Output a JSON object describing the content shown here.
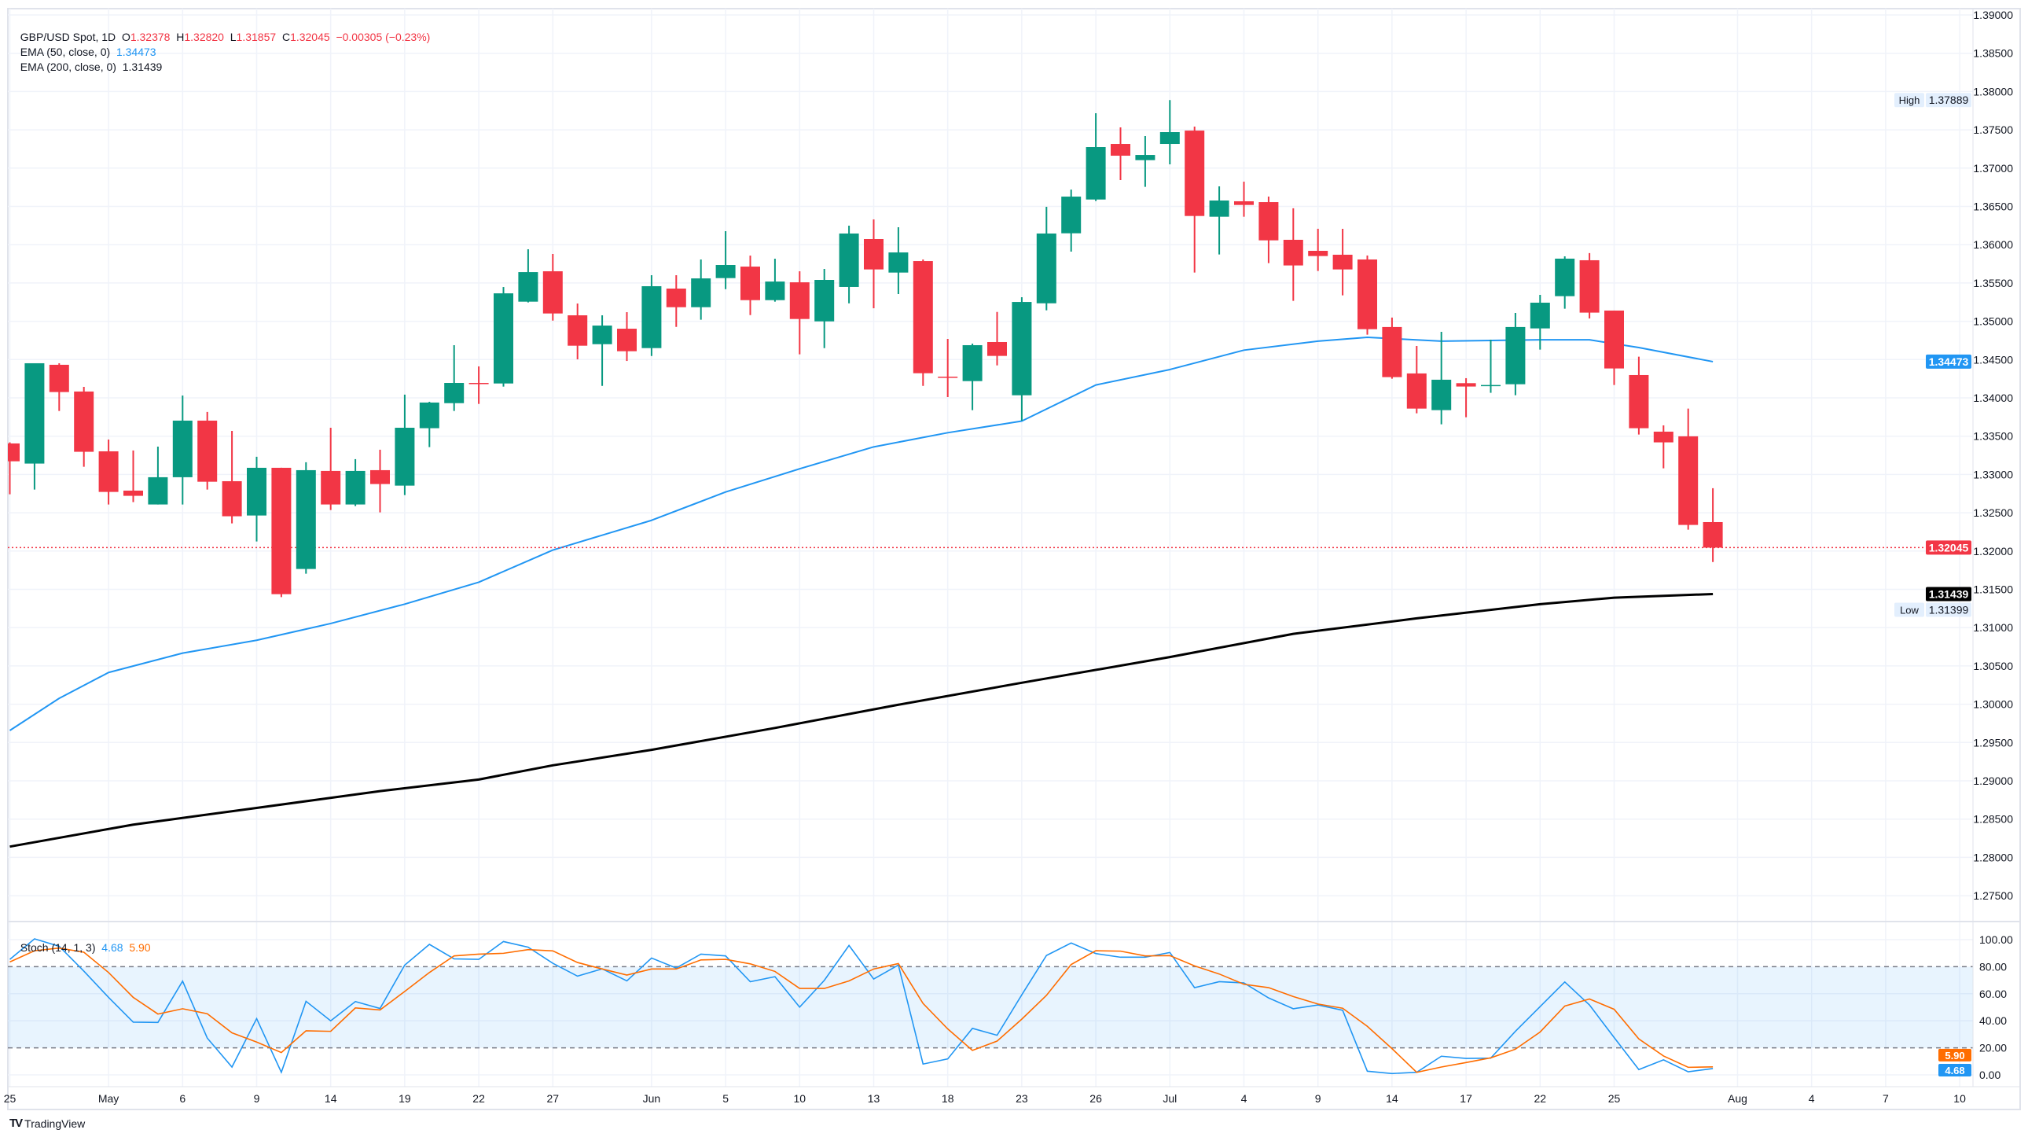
{
  "legend": {
    "symbol": "GBP/USD Spot, 1D",
    "o_label": "O",
    "o": "1.32378",
    "h_label": "H",
    "h": "1.32820",
    "l_label": "L",
    "l": "1.31857",
    "c_label": "C",
    "c": "1.32045",
    "change": "−0.00305 (−0.23%)",
    "ema50_label": "EMA (50, close, 0)",
    "ema50_value": "1.34473",
    "ema200_label": "EMA (200, close, 0)",
    "ema200_value": "1.31439",
    "stoch_label": "Stoch (14, 1, 3)",
    "stoch_k": "4.68",
    "stoch_d": "5.90"
  },
  "branding": {
    "logo_text": "TradingView"
  },
  "colors": {
    "up": "#089981",
    "down": "#f23645",
    "ema50": "#2196f3",
    "ema200": "#000000",
    "stoch_k": "#2196f3",
    "stoch_d": "#ff6d00",
    "last_price": "#f23645"
  },
  "chart_data": [
    {
      "type": "candlestick",
      "title": "GBP/USD Spot, 1D",
      "ylim": [
        1.27,
        1.39
      ],
      "y_ticks": [
        "1.39000",
        "1.38500",
        "1.38000",
        "1.37500",
        "1.37000",
        "1.36500",
        "1.36000",
        "1.35500",
        "1.35000",
        "1.34500",
        "1.34000",
        "1.33500",
        "1.33000",
        "1.32500",
        "1.32000",
        "1.31500",
        "1.31000",
        "1.30500",
        "1.30000",
        "1.29500",
        "1.29000",
        "1.28500",
        "1.28000",
        "1.27500"
      ],
      "x_ticks": [
        {
          "date": "Apr 25",
          "label": "25"
        },
        {
          "date": "May 1",
          "label": "May"
        },
        {
          "date": "May 6",
          "label": "6"
        },
        {
          "date": "May 9",
          "label": "9"
        },
        {
          "date": "May 14",
          "label": "14"
        },
        {
          "date": "May 19",
          "label": "19"
        },
        {
          "date": "May 22",
          "label": "22"
        },
        {
          "date": "May 27",
          "label": "27"
        },
        {
          "date": "Jun 2",
          "label": "Jun"
        },
        {
          "date": "Jun 5",
          "label": "5"
        },
        {
          "date": "Jun 10",
          "label": "10"
        },
        {
          "date": "Jun 13",
          "label": "13"
        },
        {
          "date": "Jun 18",
          "label": "18"
        },
        {
          "date": "Jun 23",
          "label": "23"
        },
        {
          "date": "Jun 26",
          "label": "26"
        },
        {
          "date": "Jul 1",
          "label": "Jul"
        },
        {
          "date": "Jul 4",
          "label": "4"
        },
        {
          "date": "Jul 9",
          "label": "9"
        },
        {
          "date": "Jul 14",
          "label": "14"
        },
        {
          "date": "Jul 17",
          "label": "17"
        },
        {
          "date": "Jul 22",
          "label": "22"
        },
        {
          "date": "Jul 25",
          "label": "25"
        },
        {
          "date": "Aug 1",
          "label": "Aug"
        },
        {
          "date": "Aug 4",
          "label": "4"
        },
        {
          "date": "Aug 7",
          "label": "7"
        },
        {
          "date": "Aug 10",
          "label": "10"
        }
      ],
      "grid": true,
      "candles_columns": [
        "date",
        "open",
        "high",
        "low",
        "close"
      ],
      "candles": [
        [
          "Apr 25",
          1.33405,
          1.33419,
          1.32741,
          1.33172
        ],
        [
          "Apr 28",
          1.33142,
          1.34452,
          1.32803,
          1.34452
        ],
        [
          "Apr 29",
          1.34432,
          1.34452,
          1.33829,
          1.34076
        ],
        [
          "Apr 30",
          1.34083,
          1.34144,
          1.33101,
          1.33296
        ],
        [
          "May 1",
          1.33302,
          1.33456,
          1.32608,
          1.32772
        ],
        [
          "May 2",
          1.32789,
          1.33313,
          1.32639,
          1.32721
        ],
        [
          "May 5",
          1.32608,
          1.33364,
          1.32608,
          1.32964
        ],
        [
          "May 6",
          1.32964,
          1.34031,
          1.32608,
          1.33703
        ],
        [
          "May 7",
          1.33703,
          1.33816,
          1.32803,
          1.32905
        ],
        [
          "May 8",
          1.32912,
          1.33569,
          1.32361,
          1.32454
        ],
        [
          "May 9",
          1.32464,
          1.33231,
          1.32125,
          1.33087
        ],
        [
          "May 12",
          1.33087,
          1.33087,
          1.31399,
          1.31437
        ],
        [
          "May 13",
          1.31766,
          1.33159,
          1.31704,
          1.33056
        ],
        [
          "May 14",
          1.33046,
          1.3361,
          1.32536,
          1.32608
        ],
        [
          "May 15",
          1.32608,
          1.332,
          1.32587,
          1.33046
        ],
        [
          "May 16",
          1.33056,
          1.33323,
          1.32505,
          1.32875
        ],
        [
          "May 19",
          1.32854,
          1.34042,
          1.32731,
          1.3361
        ],
        [
          "May 20",
          1.33604,
          1.33949,
          1.33357,
          1.33939
        ],
        [
          "May 21",
          1.33931,
          1.34688,
          1.33829,
          1.34195
        ],
        [
          "May 22",
          1.34195,
          1.34411,
          1.33921,
          1.34188
        ],
        [
          "May 23",
          1.34188,
          1.35447,
          1.34147,
          1.35365
        ],
        [
          "May 26",
          1.35256,
          1.3594,
          1.35246,
          1.35642
        ],
        [
          "May 27",
          1.35653,
          1.35879,
          1.35009,
          1.35102
        ],
        [
          "May 28",
          1.35078,
          1.35232,
          1.34503,
          1.34681
        ],
        [
          "May 29",
          1.34701,
          1.35078,
          1.34157,
          1.34944
        ],
        [
          "May 30",
          1.34903,
          1.35119,
          1.34482,
          1.34609
        ],
        [
          "Jun 2",
          1.3465,
          1.35602,
          1.34547,
          1.35458
        ],
        [
          "Jun 3",
          1.35427,
          1.35602,
          1.34927,
          1.35184
        ],
        [
          "Jun 4",
          1.35184,
          1.35807,
          1.3502,
          1.3556
        ],
        [
          "Jun 5",
          1.35564,
          1.36176,
          1.3542,
          1.35735
        ],
        [
          "Jun 6",
          1.35714,
          1.35858,
          1.35081,
          1.35276
        ],
        [
          "Jun 9",
          1.35276,
          1.35817,
          1.35256,
          1.35519
        ],
        [
          "Jun 10",
          1.35509,
          1.35653,
          1.34568,
          1.3503
        ],
        [
          "Jun 11",
          1.34999,
          1.35684,
          1.3465,
          1.3554
        ],
        [
          "Jun 12",
          1.35448,
          1.36248,
          1.35235,
          1.36146
        ],
        [
          "Jun 13",
          1.36074,
          1.3633,
          1.3517,
          1.35677
        ],
        [
          "Jun 16",
          1.35636,
          1.36228,
          1.35355,
          1.35899
        ],
        [
          "Jun 17",
          1.35786,
          1.35807,
          1.34157,
          1.34322
        ],
        [
          "Jun 18",
          1.34277,
          1.3477,
          1.3401,
          1.34274
        ],
        [
          "Jun 19",
          1.34219,
          1.34708,
          1.33839,
          1.34688
        ],
        [
          "Jun 20",
          1.34729,
          1.35122,
          1.34424,
          1.34548
        ],
        [
          "Jun 23",
          1.34034,
          1.35314,
          1.33702,
          1.35252
        ],
        [
          "Jun 24",
          1.35235,
          1.36495,
          1.35143,
          1.36146
        ],
        [
          "Jun 25",
          1.36149,
          1.3672,
          1.3591,
          1.36628
        ],
        [
          "Jun 26",
          1.3659,
          1.37716,
          1.3657,
          1.37275
        ],
        [
          "Jun 27",
          1.37316,
          1.37532,
          1.36844,
          1.37162
        ],
        [
          "Jun 30",
          1.37104,
          1.37419,
          1.36755,
          1.37172
        ],
        [
          "Jul 1",
          1.37316,
          1.37889,
          1.37049,
          1.3747
        ],
        [
          "Jul 2",
          1.3749,
          1.37542,
          1.35636,
          1.36375
        ],
        [
          "Jul 3",
          1.36365,
          1.36762,
          1.35872,
          1.36577
        ],
        [
          "Jul 4",
          1.36567,
          1.36823,
          1.36365,
          1.36519
        ],
        [
          "Jul 7",
          1.36556,
          1.36628,
          1.35759,
          1.36057
        ],
        [
          "Jul 8",
          1.36064,
          1.36475,
          1.35267,
          1.35729
        ],
        [
          "Jul 9",
          1.3592,
          1.36208,
          1.35657,
          1.35852
        ],
        [
          "Jul 10",
          1.35869,
          1.36208,
          1.35339,
          1.35677
        ],
        [
          "Jul 11",
          1.35807,
          1.35859,
          1.34825,
          1.34897
        ],
        [
          "Jul 14",
          1.34925,
          1.35048,
          1.3425,
          1.34271
        ],
        [
          "Jul 15",
          1.34319,
          1.34678,
          1.33799,
          1.3386
        ],
        [
          "Jul 16",
          1.3384,
          1.34863,
          1.33655,
          1.34237
        ],
        [
          "Jul 17",
          1.34192,
          1.34257,
          1.33747,
          1.34148
        ],
        [
          "Jul 18",
          1.34161,
          1.3476,
          1.34066,
          1.34168
        ],
        [
          "Jul 21",
          1.34178,
          1.35109,
          1.34035,
          1.34925
        ],
        [
          "Jul 22",
          1.34907,
          1.35345,
          1.3463,
          1.35243
        ],
        [
          "Jul 23",
          1.35328,
          1.35848,
          1.35164,
          1.35818
        ],
        [
          "Jul 24",
          1.35797,
          1.3589,
          1.35037,
          1.35113
        ],
        [
          "Jul 25",
          1.3514,
          1.3514,
          1.34168,
          1.34384
        ],
        [
          "Jul 28",
          1.34298,
          1.34538,
          1.33521,
          1.33604
        ],
        [
          "Jul 29",
          1.33559,
          1.33641,
          1.3308,
          1.33419
        ],
        [
          "Jul 30",
          1.33498,
          1.3386,
          1.32279,
          1.32341
        ],
        [
          "Jul 31",
          1.32378,
          1.3282,
          1.31857,
          1.32045
        ]
      ],
      "series": [
        {
          "name": "EMA (50, close, 0)",
          "type": "line",
          "points": [
            [
              "Apr 25",
              1.29657
            ],
            [
              "Apr 29",
              1.30077
            ],
            [
              "May 1",
              1.30414
            ],
            [
              "May 6",
              1.30667
            ],
            [
              "May 9",
              1.30835
            ],
            [
              "May 14",
              1.31054
            ],
            [
              "May 19",
              1.31307
            ],
            [
              "May 22",
              1.31593
            ],
            [
              "May 27",
              1.32013
            ],
            [
              "Jun 2",
              1.32401
            ],
            [
              "Jun 5",
              1.32771
            ],
            [
              "Jun 10",
              1.33074
            ],
            [
              "Jun 13",
              1.3336
            ],
            [
              "Jun 18",
              1.33545
            ],
            [
              "Jun 23",
              1.33697
            ],
            [
              "Jun 26",
              1.34168
            ],
            [
              "Jul 1",
              1.3437
            ],
            [
              "Jul 4",
              1.34623
            ],
            [
              "Jul 9",
              1.34741
            ],
            [
              "Jul 11",
              1.34791
            ],
            [
              "Jul 16",
              1.34741
            ],
            [
              "Jul 22",
              1.34758
            ],
            [
              "Jul 24",
              1.34758
            ],
            [
              "Jul 28",
              1.34657
            ],
            [
              "Jul 31",
              1.34473
            ]
          ]
        },
        {
          "name": "EMA (200, close, 0)",
          "type": "line",
          "points": [
            [
              "Apr 25",
              1.28141
            ],
            [
              "May 2",
              1.28428
            ],
            [
              "May 9",
              1.28646
            ],
            [
              "May 16",
              1.28865
            ],
            [
              "May 22",
              1.29017
            ],
            [
              "May 27",
              1.29202
            ],
            [
              "Jun 2",
              1.29404
            ],
            [
              "Jun 9",
              1.2969
            ],
            [
              "Jun 16",
              1.29993
            ],
            [
              "Jun 23",
              1.3028
            ],
            [
              "Jul 1",
              1.30616
            ],
            [
              "Jul 8",
              1.30919
            ],
            [
              "Jul 15",
              1.31121
            ],
            [
              "Jul 22",
              1.31306
            ],
            [
              "Jul 25",
              1.31391
            ],
            [
              "Jul 31",
              1.31439
            ]
          ]
        }
      ],
      "markers": {
        "high_label": "High",
        "high_value": "1.37889",
        "low_label": "Low",
        "low_value": "1.31399",
        "last_price": "1.32045",
        "ema50_badge": "1.34473",
        "ema200_badge": "1.31439"
      }
    },
    {
      "type": "line",
      "title": "Stoch (14, 1, 3)",
      "ylim": [
        0,
        100
      ],
      "y_ticks": [
        "100.00",
        "80.00",
        "60.00",
        "40.00",
        "20.00",
        "0.00"
      ],
      "bands": {
        "upper": 80,
        "lower": 20
      },
      "series": [
        {
          "name": "%K",
          "value_label": "4.68",
          "values": [
            85.4,
            100.6,
            95.1,
            76.7,
            57.3,
            39.0,
            38.8,
            69.3,
            27.2,
            5.8,
            41.6,
            1.9,
            54.4,
            40.0,
            54.2,
            49.1,
            81.2,
            96.5,
            85.8,
            85.4,
            98.6,
            94.4,
            82.5,
            73.0,
            78.4,
            69.5,
            86.4,
            79.0,
            89.3,
            88.0,
            68.9,
            72.6,
            50.1,
            69.9,
            95.7,
            70.9,
            81.2,
            8.0,
            11.8,
            34.4,
            29.3,
            59.2,
            88.3,
            97.5,
            89.7,
            87.0,
            87.0,
            90.5,
            64.5,
            68.9,
            68.0,
            56.9,
            48.9,
            51.7,
            47.8,
            2.7,
            1.0,
            1.9,
            13.8,
            12.2,
            12.4,
            32.2,
            50.5,
            68.7,
            51.7,
            27.6,
            3.9,
            11.1,
            2.3,
            4.68
          ]
        },
        {
          "name": "%D",
          "value_label": "5.90",
          "values": [
            83.5,
            91.8,
            93.8,
            90.7,
            75.7,
            57.3,
            45.0,
            48.9,
            45.2,
            31.1,
            24.3,
            16.5,
            32.6,
            32.2,
            49.5,
            48.0,
            61.7,
            75.7,
            88.0,
            89.3,
            89.9,
            92.6,
            91.7,
            83.1,
            78.3,
            73.8,
            78.3,
            78.3,
            85.0,
            85.4,
            82.1,
            76.5,
            63.9,
            63.9,
            69.5,
            78.3,
            82.3,
            52.8,
            34.0,
            18.1,
            25.0,
            41.2,
            58.8,
            81.6,
            91.8,
            91.5,
            88.0,
            88.2,
            80.6,
            74.6,
            67.0,
            64.5,
            57.9,
            52.4,
            49.3,
            35.9,
            19.4,
            1.9,
            5.8,
            9.1,
            12.6,
            19.0,
            31.7,
            50.9,
            56.1,
            48.5,
            26.6,
            14.0,
            5.6,
            5.9
          ]
        }
      ]
    }
  ]
}
